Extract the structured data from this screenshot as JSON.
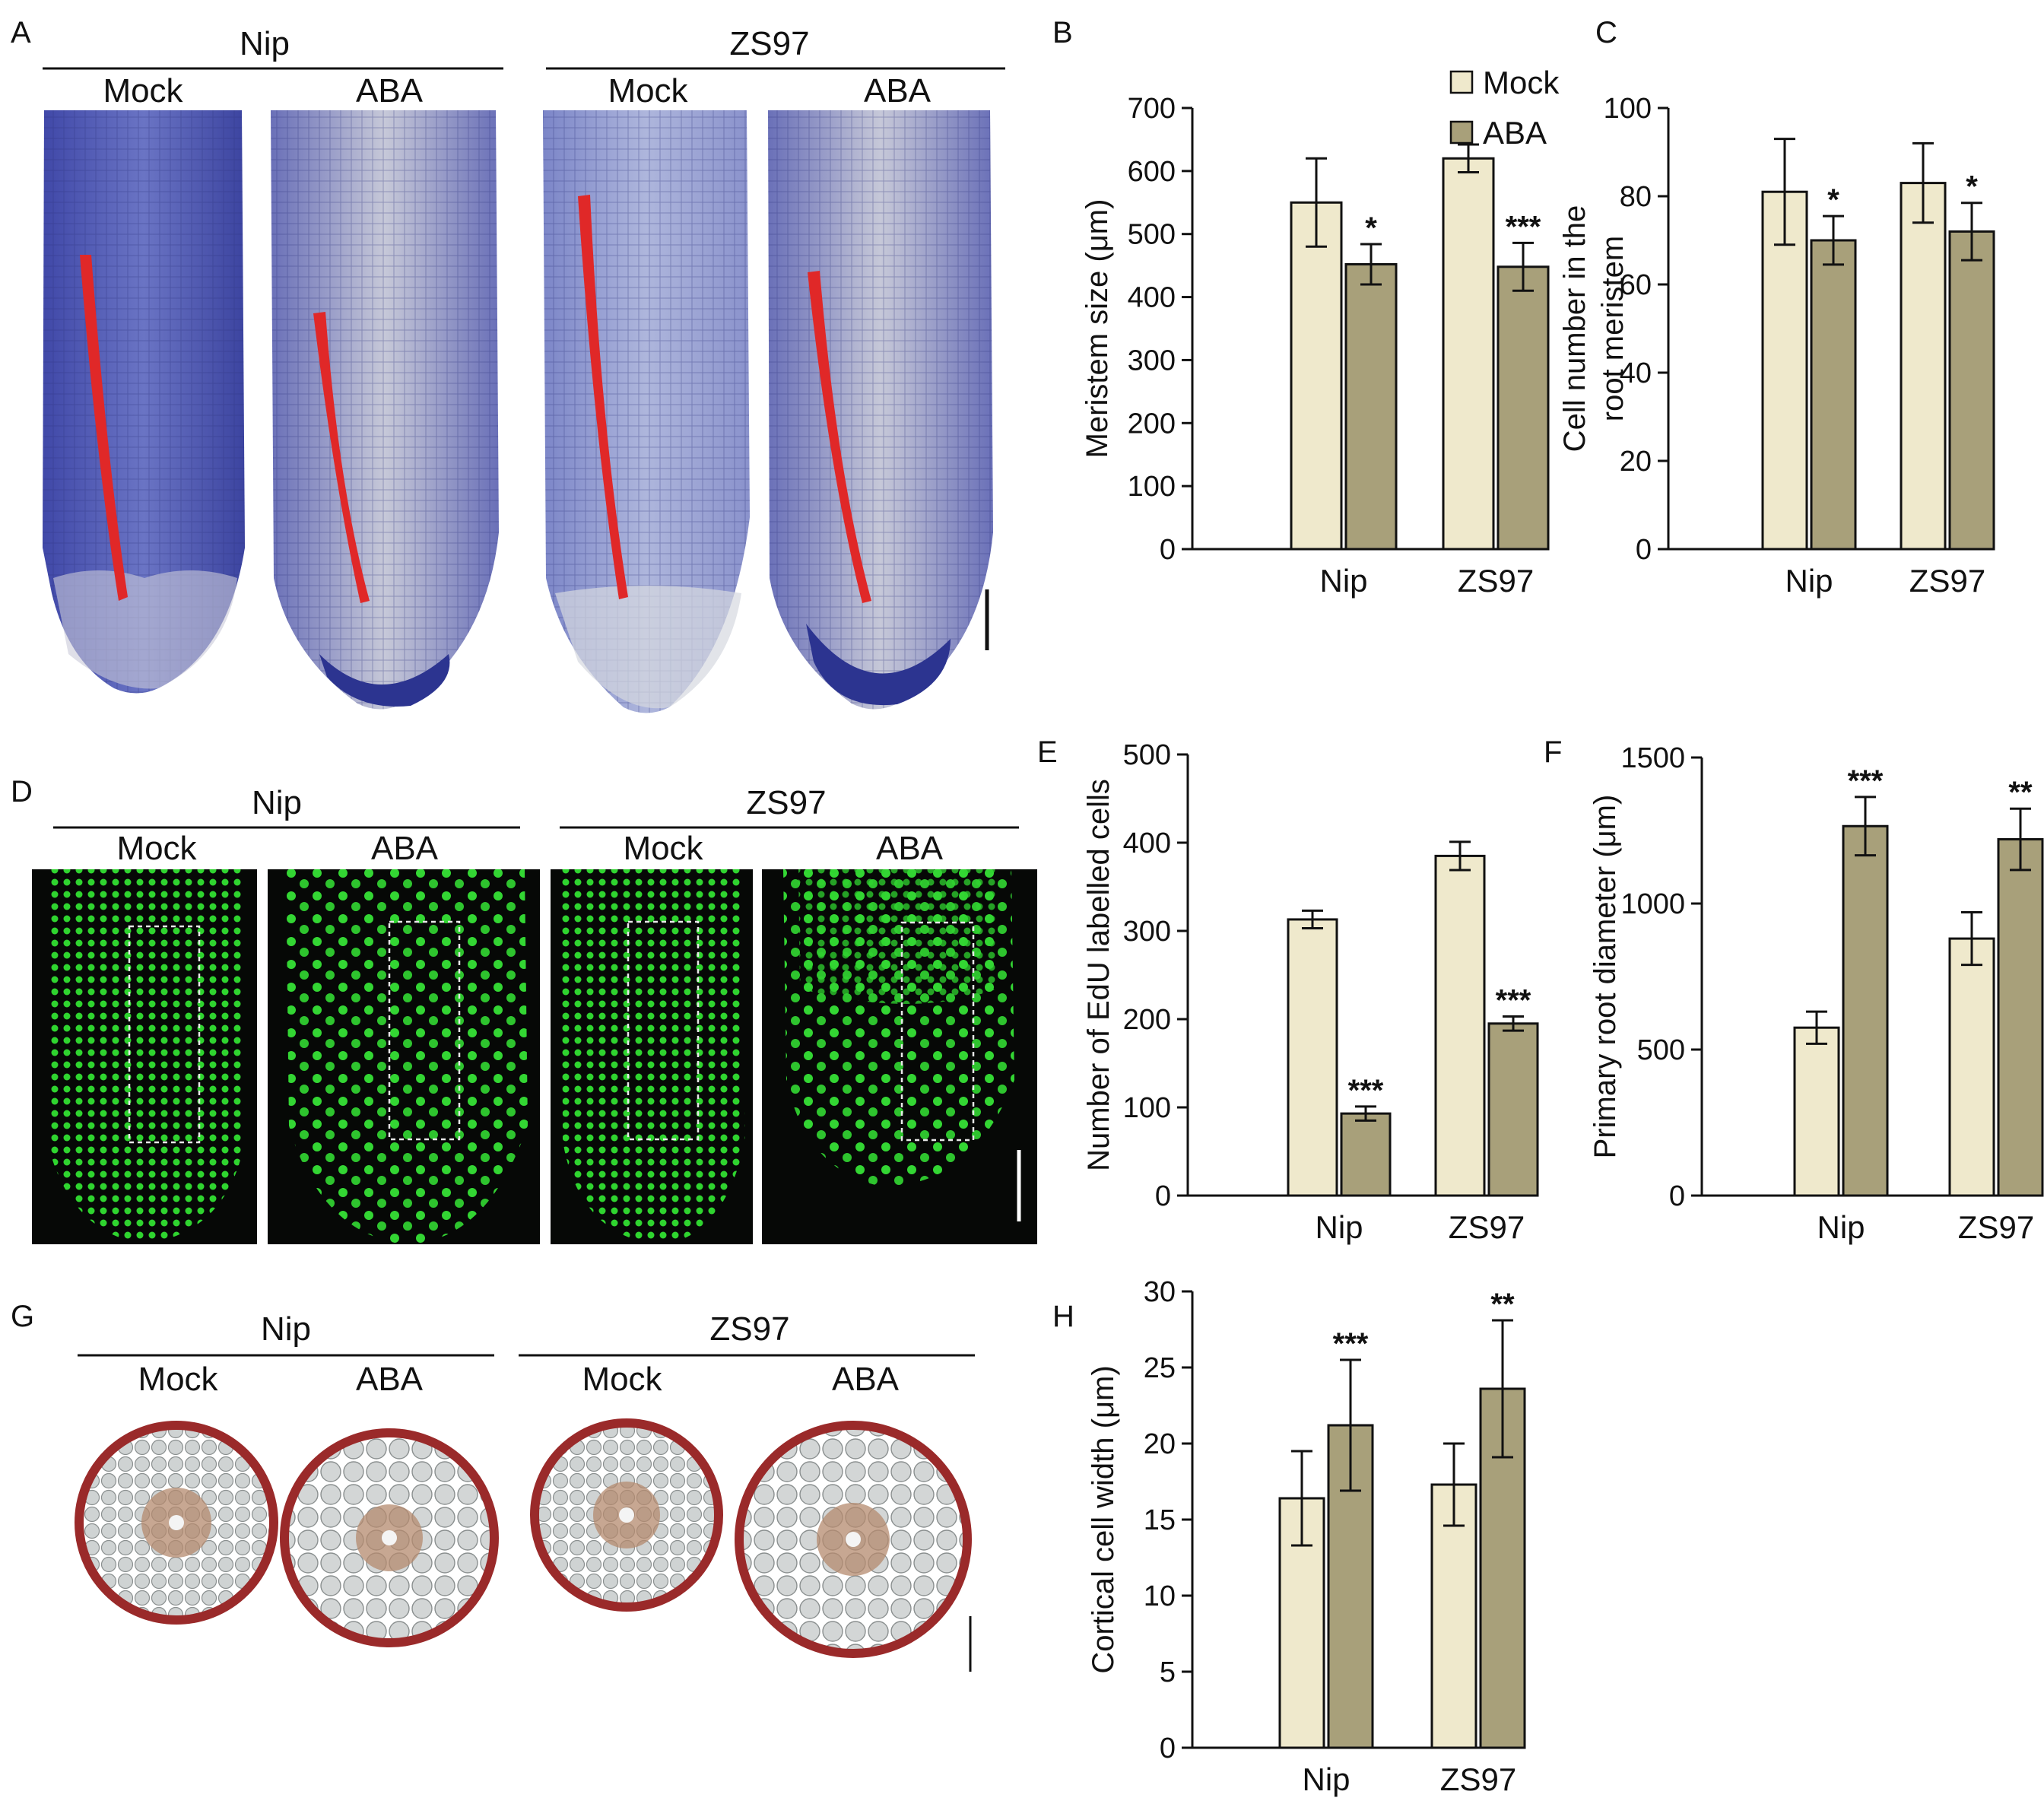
{
  "figure": {
    "panels": {
      "A": {
        "letter": "A",
        "genotypes": [
          "Nip",
          "ZS97"
        ],
        "conditions": [
          "Mock",
          "ABA",
          "Mock",
          "ABA"
        ]
      },
      "D": {
        "letter": "D",
        "genotypes": [
          "Nip",
          "ZS97"
        ],
        "conditions": [
          "Mock",
          "ABA",
          "Mock",
          "ABA"
        ]
      },
      "G": {
        "letter": "G",
        "genotypes": [
          "Nip",
          "ZS97"
        ],
        "conditions": [
          "Mock",
          "ABA",
          "Mock",
          "ABA"
        ]
      }
    },
    "legend": {
      "mock": "Mock",
      "aba": "ABA"
    },
    "colors": {
      "mock": "#efe9cc",
      "aba": "#a8a07a",
      "axis": "#111111",
      "micro_bg": "#111111",
      "edu": "#2ecc2e",
      "stain_blue": "#4a4fb0",
      "stain_red": "#b03030"
    }
  },
  "chart_data": [
    {
      "panel": "B",
      "type": "bar",
      "title": "",
      "categories": [
        "Nip",
        "ZS97"
      ],
      "series": [
        {
          "name": "Mock",
          "values": [
            550,
            620
          ],
          "errors": [
            70,
            22
          ]
        },
        {
          "name": "ABA",
          "values": [
            452,
            448
          ],
          "errors": [
            32,
            38
          ]
        }
      ],
      "significance": [
        {
          "series": "ABA",
          "category": "Nip",
          "label": "*"
        },
        {
          "series": "ABA",
          "category": "ZS97",
          "label": "***"
        }
      ],
      "xlabel": "",
      "ylabel": "Meristem size (μm)",
      "ylim": [
        0,
        700
      ],
      "yticks": [
        0,
        100,
        200,
        300,
        400,
        500,
        600,
        700
      ],
      "legend": "top-right"
    },
    {
      "panel": "C",
      "type": "bar",
      "title": "",
      "categories": [
        "Nip",
        "ZS97"
      ],
      "series": [
        {
          "name": "Mock",
          "values": [
            81,
            83
          ],
          "errors": [
            12,
            9
          ]
        },
        {
          "name": "ABA",
          "values": [
            70,
            72
          ],
          "errors": [
            5.5,
            6.5
          ]
        }
      ],
      "significance": [
        {
          "series": "ABA",
          "category": "Nip",
          "label": "*"
        },
        {
          "series": "ABA",
          "category": "ZS97",
          "label": "*"
        }
      ],
      "xlabel": "",
      "ylabel": "Cell number in the root meristem",
      "ylabel_lines": [
        "Cell number in the",
        "root meristem"
      ],
      "ylim": [
        0,
        100
      ],
      "yticks": [
        0,
        20,
        40,
        60,
        80,
        100
      ]
    },
    {
      "panel": "E",
      "type": "bar",
      "title": "",
      "categories": [
        "Nip",
        "ZS97"
      ],
      "series": [
        {
          "name": "Mock",
          "values": [
            313,
            385
          ],
          "errors": [
            10,
            16
          ]
        },
        {
          "name": "ABA",
          "values": [
            93,
            195
          ],
          "errors": [
            8,
            8
          ]
        }
      ],
      "significance": [
        {
          "series": "ABA",
          "category": "Nip",
          "label": "***"
        },
        {
          "series": "ABA",
          "category": "ZS97",
          "label": "***"
        }
      ],
      "xlabel": "",
      "ylabel": "Number of  EdU labelled cells",
      "ylim": [
        0,
        500
      ],
      "yticks": [
        0,
        100,
        200,
        300,
        400,
        500
      ]
    },
    {
      "panel": "F",
      "type": "bar",
      "title": "",
      "categories": [
        "Nip",
        "ZS97"
      ],
      "series": [
        {
          "name": "Mock",
          "values": [
            575,
            880
          ],
          "errors": [
            55,
            90
          ]
        },
        {
          "name": "ABA",
          "values": [
            1265,
            1220
          ],
          "errors": [
            100,
            105
          ]
        }
      ],
      "significance": [
        {
          "series": "ABA",
          "category": "Nip",
          "label": "***"
        },
        {
          "series": "ABA",
          "category": "ZS97",
          "label": "**"
        }
      ],
      "xlabel": "",
      "ylabel": "Primary root diameter (μm)",
      "ylim": [
        0,
        1500
      ],
      "yticks": [
        0,
        500,
        1000,
        1500
      ]
    },
    {
      "panel": "H",
      "type": "bar",
      "title": "",
      "categories": [
        "Nip",
        "ZS97"
      ],
      "series": [
        {
          "name": "Mock",
          "values": [
            16.4,
            17.3
          ],
          "errors": [
            3.1,
            2.7
          ]
        },
        {
          "name": "ABA",
          "values": [
            21.2,
            23.6
          ],
          "errors": [
            4.3,
            4.5
          ]
        }
      ],
      "significance": [
        {
          "series": "ABA",
          "category": "Nip",
          "label": "***"
        },
        {
          "series": "ABA",
          "category": "ZS97",
          "label": "**"
        }
      ],
      "xlabel": "",
      "ylabel": "Cortical cell width (μm)",
      "ylim": [
        0,
        30
      ],
      "yticks": [
        0,
        5,
        10,
        15,
        20,
        25,
        30
      ]
    }
  ]
}
